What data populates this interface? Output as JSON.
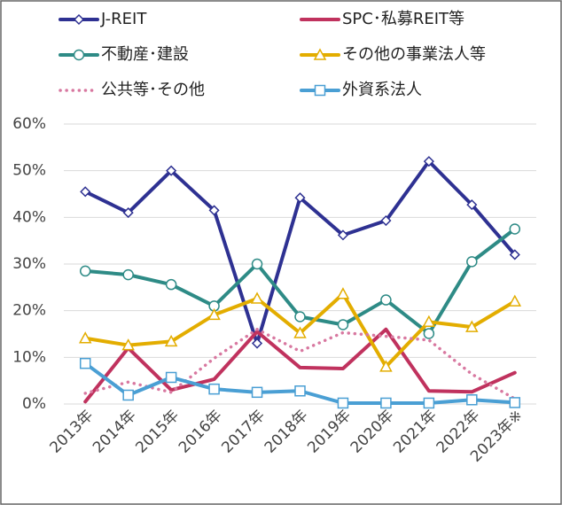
{
  "chart_data": {
    "type": "line",
    "categories": [
      "2013年",
      "2014年",
      "2015年",
      "2016年",
      "2017年",
      "2018年",
      "2019年",
      "2020年",
      "2021年",
      "2022年",
      "2023年※"
    ],
    "series": [
      {
        "name": "J-REIT",
        "color": "#2e3192",
        "marker": "diamond",
        "values": [
          45.5,
          41,
          50,
          41.5,
          13,
          44.2,
          36.2,
          39.3,
          52,
          42.7,
          32
        ]
      },
      {
        "name": "SPC･私募REIT等",
        "color": "#c0325e",
        "marker": "none",
        "values": [
          0.5,
          12,
          3,
          5.3,
          15.5,
          7.8,
          7.6,
          16,
          2.8,
          2.6,
          6.7
        ]
      },
      {
        "name": "不動産･建設",
        "color": "#2e8b86",
        "marker": "circle",
        "values": [
          28.5,
          27.7,
          25.6,
          21,
          30,
          18.7,
          17,
          22.3,
          15.1,
          30.5,
          37.5
        ]
      },
      {
        "name": "その他の事業法人等",
        "color": "#e3ad00",
        "marker": "triangle",
        "values": [
          14.1,
          12.6,
          13.4,
          19.1,
          22.6,
          15.2,
          23.6,
          8,
          17.6,
          16.5,
          22
        ]
      },
      {
        "name": "公共等･その他",
        "color": "#d878a0",
        "marker": "none",
        "line_style": "dotted",
        "values": [
          2.3,
          4.7,
          2.5,
          9.8,
          16,
          11.3,
          15.3,
          14.5,
          13.7,
          6.4,
          1.1
        ]
      },
      {
        "name": "外資系法人",
        "color": "#4a9fd4",
        "marker": "square",
        "values": [
          8.7,
          1.9,
          5.7,
          3.2,
          2.5,
          2.8,
          0.2,
          0.2,
          0.2,
          0.9,
          0.3
        ]
      }
    ],
    "ylim": [
      0,
      60
    ],
    "yticks": [
      {
        "value": 0,
        "label": "0%"
      },
      {
        "value": 10,
        "label": "10%"
      },
      {
        "value": 20,
        "label": "20%"
      },
      {
        "value": 30,
        "label": "30%"
      },
      {
        "value": 40,
        "label": "40%"
      },
      {
        "value": 50,
        "label": "50%"
      },
      {
        "value": 60,
        "label": "60%"
      }
    ],
    "grid": true
  }
}
